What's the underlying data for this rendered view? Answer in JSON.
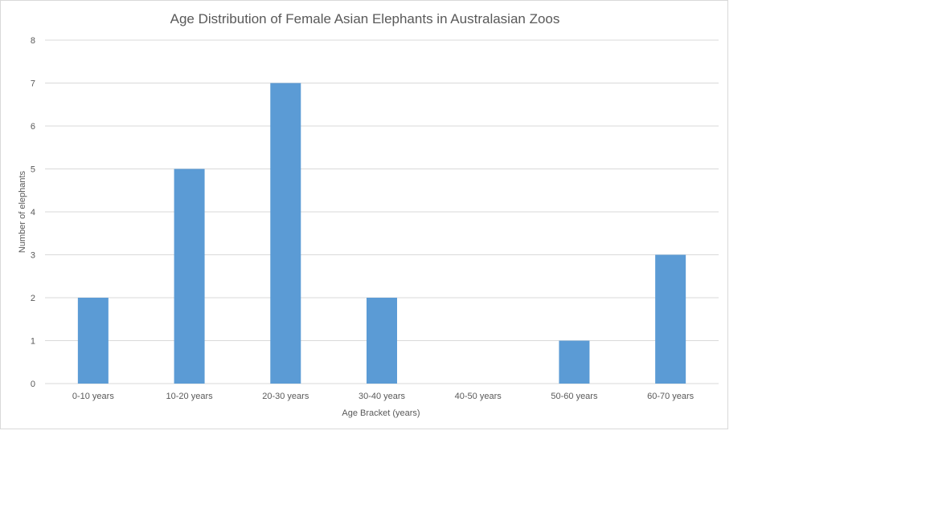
{
  "chart_data": {
    "type": "bar",
    "title": "Age Distribution of Female Asian Elephants in Australasian Zoos",
    "xlabel": "Age  Bracket (years)",
    "ylabel": "Number  of elephants",
    "categories": [
      "0-10 years",
      "10-20 years",
      "20-30 years",
      "30-40 years",
      "40-50 years",
      "50-60 years",
      "60-70 years"
    ],
    "values": [
      2,
      5,
      7,
      2,
      0,
      1,
      3
    ],
    "ylim": [
      0,
      8
    ],
    "yticks": [
      "0",
      "1",
      "2",
      "3",
      "4",
      "5",
      "6",
      "7",
      "8"
    ],
    "grid": true,
    "legend": "none",
    "bar_color": "#5b9bd5",
    "grid_color": "#d9d9d9"
  }
}
